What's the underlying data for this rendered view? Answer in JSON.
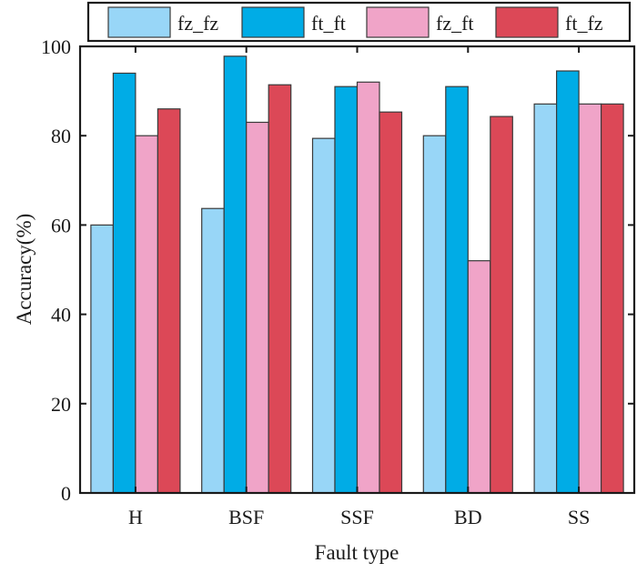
{
  "chart_data": {
    "type": "bar",
    "title": "",
    "xlabel": "Fault type",
    "ylabel": "Accuracy(%)",
    "ylim": [
      0,
      100
    ],
    "yticks": [
      0,
      20,
      40,
      60,
      80,
      100
    ],
    "grid": false,
    "legend_position": "top",
    "categories": [
      "H",
      "BSF",
      "SSF",
      "BD",
      "SS"
    ],
    "series": [
      {
        "name": "fz_fz",
        "color": "#98d6f7",
        "values": [
          60,
          63.7,
          79.4,
          80,
          87.1
        ]
      },
      {
        "name": "ft_ft",
        "color": "#00ace6",
        "values": [
          94,
          97.8,
          91,
          91,
          94.5
        ]
      },
      {
        "name": "fz_ft",
        "color": "#f0a4c8",
        "values": [
          80,
          83,
          92,
          52,
          87.1
        ]
      },
      {
        "name": "ft_fz",
        "color": "#dc4857",
        "values": [
          86,
          91.4,
          85.3,
          84.3,
          87.1
        ]
      }
    ]
  }
}
